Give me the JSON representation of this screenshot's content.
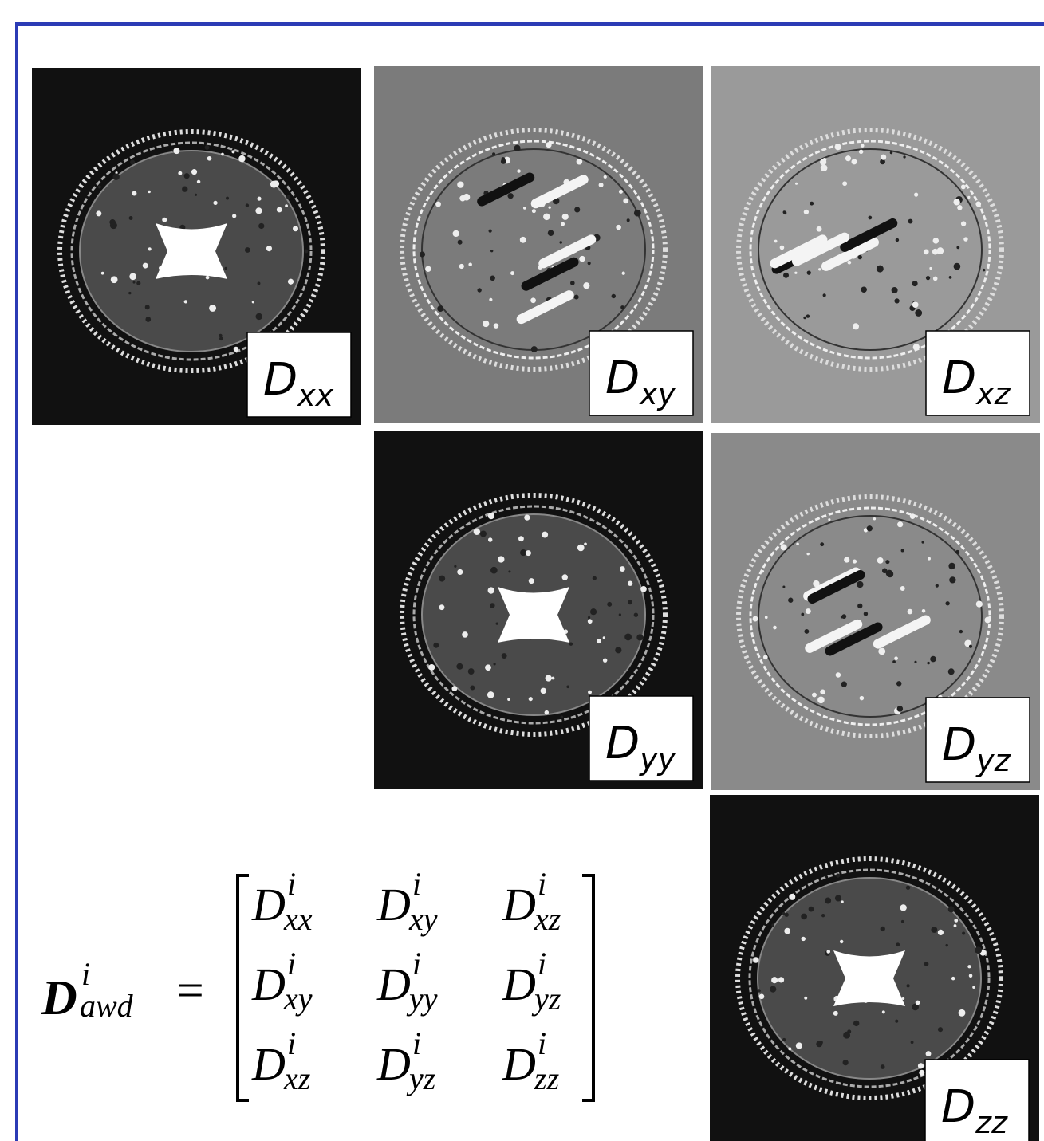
{
  "panels": [
    {
      "symbol": "D",
      "subscript": "xx"
    },
    {
      "symbol": "D",
      "subscript": "xy"
    },
    {
      "symbol": "D",
      "subscript": "xz"
    },
    {
      "symbol": "D",
      "subscript": "yy"
    },
    {
      "symbol": "D",
      "subscript": "yz"
    },
    {
      "symbol": "D",
      "subscript": "zz"
    }
  ],
  "formula": {
    "symbol": "D",
    "superscript": "i",
    "subscript": "awd",
    "relation": "=",
    "matrix": [
      [
        {
          "symbol": "D",
          "superscript": "i",
          "subscript": "xx"
        },
        {
          "symbol": "D",
          "superscript": "i",
          "subscript": "xy"
        },
        {
          "symbol": "D",
          "superscript": "i",
          "subscript": "xz"
        }
      ],
      [
        {
          "symbol": "D",
          "superscript": "i",
          "subscript": "xy"
        },
        {
          "symbol": "D",
          "superscript": "i",
          "subscript": "yy"
        },
        {
          "symbol": "D",
          "superscript": "i",
          "subscript": "yz"
        }
      ],
      [
        {
          "symbol": "D",
          "superscript": "i",
          "subscript": "xz"
        },
        {
          "symbol": "D",
          "superscript": "i",
          "subscript": "yz"
        },
        {
          "symbol": "D",
          "superscript": "i",
          "subscript": "zz"
        }
      ]
    ]
  }
}
